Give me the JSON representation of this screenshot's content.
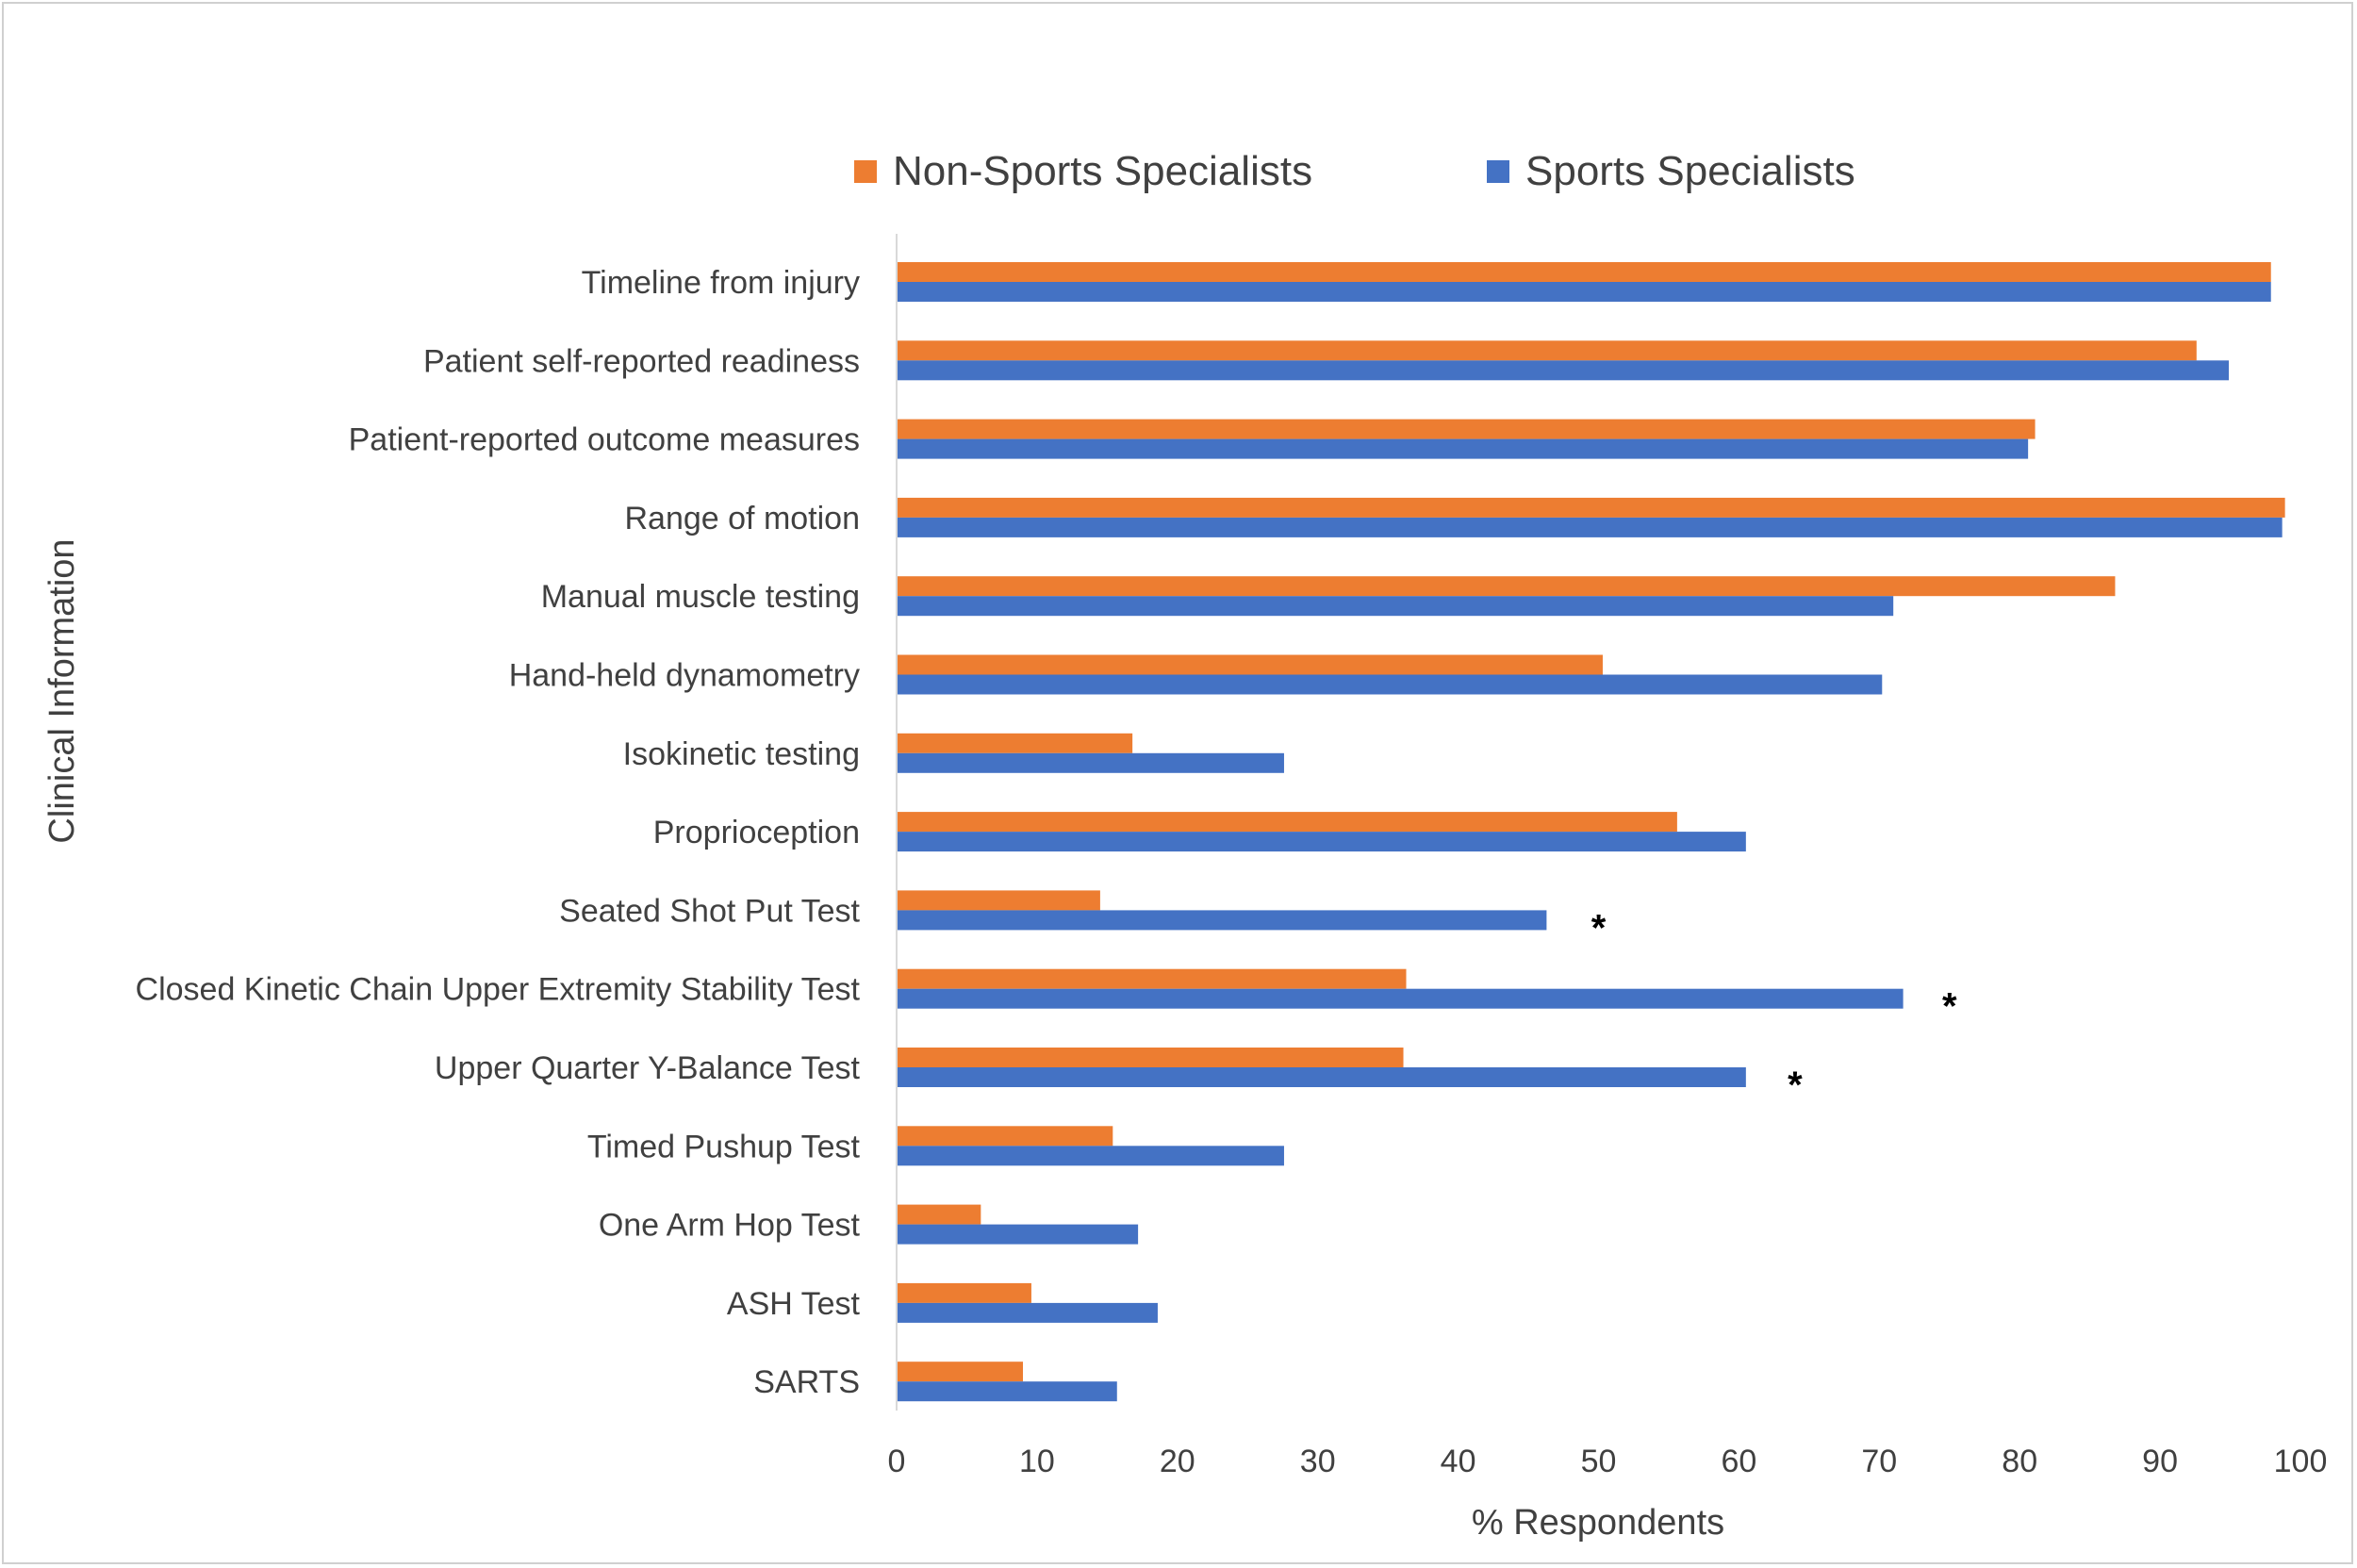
{
  "chart_data": {
    "type": "bar",
    "orientation": "horizontal",
    "categories": [
      "Timeline from injury",
      "Patient self-reported readiness",
      "Patient-reported outcome measures",
      "Range of motion",
      "Manual muscle testing",
      "Hand-held dynamometry",
      "Isokinetic testing",
      "Proprioception",
      "Seated Shot Put Test",
      "Closed Kinetic Chain Upper Extremity Stability Test",
      "Upper Quarter Y-Balance Test",
      "Timed Pushup Test",
      "One Arm Hop Test",
      "ASH Test",
      "SARTS"
    ],
    "series": [
      {
        "name": "Non-Sports Specialists",
        "color": "#ED7D31",
        "values": [
          97.9,
          92.6,
          81.1,
          98.9,
          86.8,
          50.3,
          16.8,
          55.6,
          14.5,
          36.3,
          36.1,
          15.4,
          6.0,
          9.6,
          9.0
        ]
      },
      {
        "name": "Sports Specialists",
        "color": "#4472C4",
        "values": [
          97.9,
          94.9,
          80.6,
          98.7,
          71.0,
          70.2,
          27.6,
          60.5,
          46.3,
          71.7,
          60.5,
          27.6,
          17.2,
          18.6,
          15.7
        ]
      }
    ],
    "annotations": [
      {
        "category_index": 8,
        "text": "*",
        "x": 50
      },
      {
        "category_index": 9,
        "text": "*",
        "x": 75
      },
      {
        "category_index": 10,
        "text": "*",
        "x": 64
      }
    ],
    "xlabel": "% Respondents",
    "ylabel": "Clinical Information",
    "xlim": [
      0,
      100
    ],
    "xticks": [
      "0",
      "10",
      "20",
      "30",
      "40",
      "50",
      "60",
      "70",
      "80",
      "90",
      "100"
    ],
    "grid": false,
    "legend_position": "top"
  }
}
